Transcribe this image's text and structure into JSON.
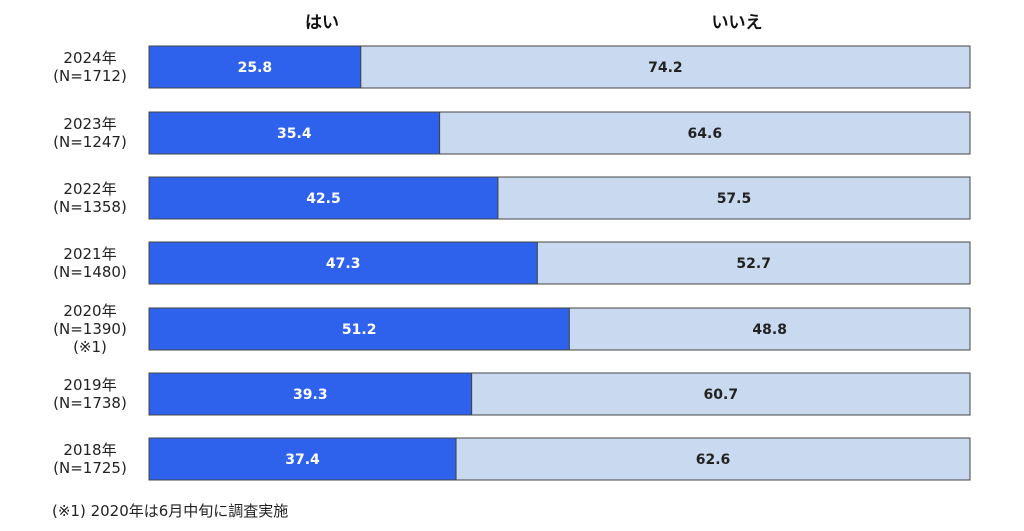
{
  "chart_data": {
    "type": "bar",
    "stacked": true,
    "orientation": "horizontal",
    "legend_position": "top",
    "series": [
      {
        "name": "はい",
        "color": "#2f62ec",
        "values": [
          25.8,
          35.4,
          42.5,
          47.3,
          51.2,
          39.3,
          37.4
        ]
      },
      {
        "name": "いいえ",
        "color": "#c9daf0",
        "values": [
          74.2,
          64.6,
          57.5,
          52.7,
          48.8,
          60.7,
          62.6
        ]
      }
    ],
    "categories": [
      {
        "year": "2024年",
        "n": "(N=1712)",
        "note": ""
      },
      {
        "year": "2023年",
        "n": "(N=1247)",
        "note": ""
      },
      {
        "year": "2022年",
        "n": "(N=1358)",
        "note": ""
      },
      {
        "year": "2021年",
        "n": "(N=1480)",
        "note": ""
      },
      {
        "year": "2020年",
        "n": "(N=1390)",
        "note": "(※1)"
      },
      {
        "year": "2019年",
        "n": "(N=1738)",
        "note": ""
      },
      {
        "year": "2018年",
        "n": "(N=1725)",
        "note": ""
      }
    ],
    "xlim": [
      0,
      100
    ],
    "grid": false
  },
  "footnote": "(※1) 2020年は6月中旬に調査実施"
}
